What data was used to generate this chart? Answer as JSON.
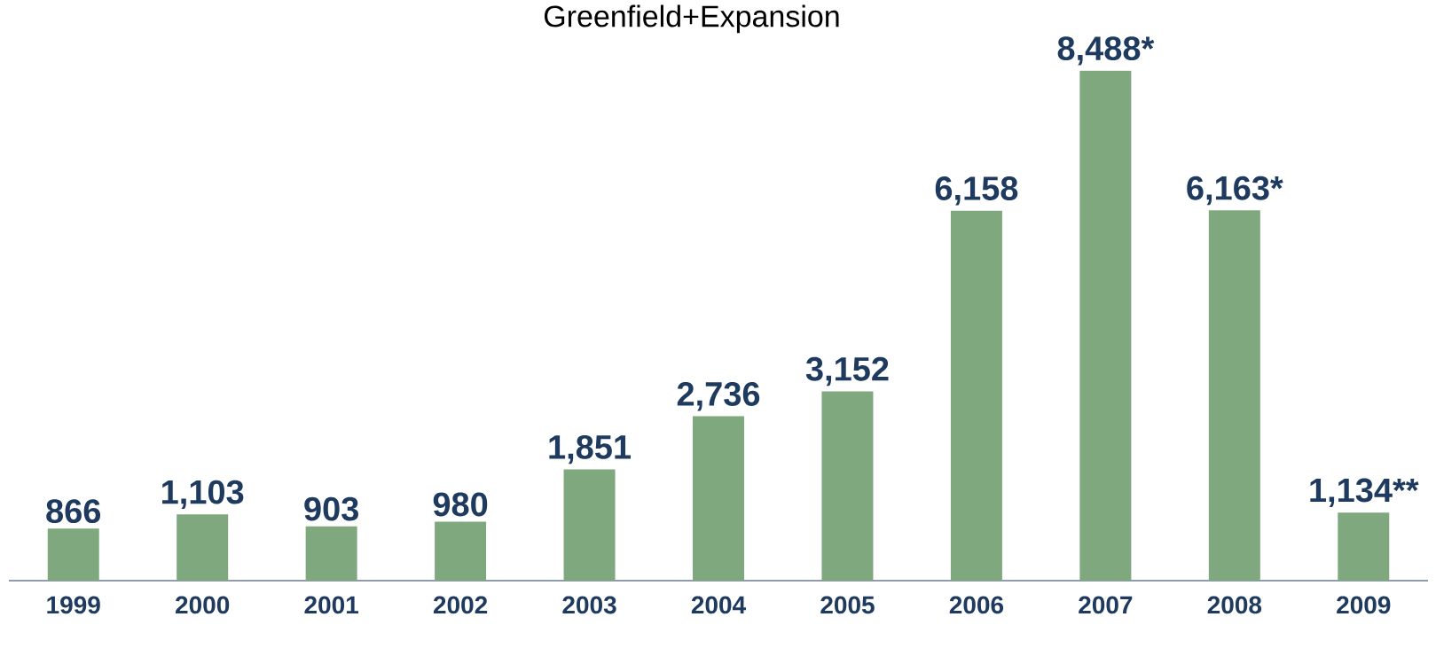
{
  "chart_data": {
    "type": "bar",
    "title": "Greenfield+Expansion",
    "categories": [
      "1999",
      "2000",
      "2001",
      "2002",
      "2003",
      "2004",
      "2005",
      "2006",
      "2007",
      "2008",
      "2009"
    ],
    "values": [
      866,
      1103,
      903,
      980,
      1851,
      2736,
      3152,
      6158,
      8488,
      6163,
      1134
    ],
    "value_labels": [
      "866",
      "1,103",
      "903",
      "980",
      "1,851",
      "2,736",
      "3,152",
      "6,158",
      "8,488*",
      "6,163*",
      "1,134**"
    ],
    "color": "#7fa87f"
  }
}
